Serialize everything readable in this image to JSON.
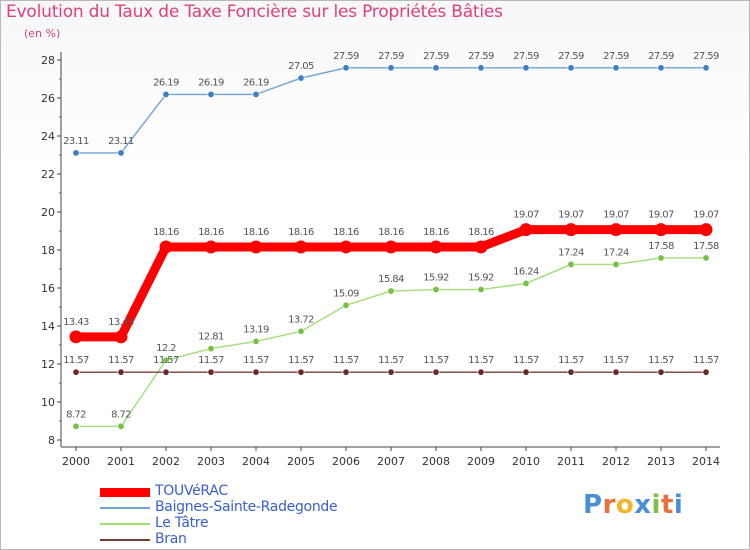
{
  "title": "Evolution du Taux de Taxe Foncière sur les Propriétés Bâties",
  "unit_label": "(en %)",
  "logo": {
    "letters": [
      "P",
      "r",
      "o",
      "x",
      "i",
      "t",
      "i"
    ],
    "colors": [
      "#4a8fd6",
      "#e8703a",
      "#f2b52c",
      "#4a8fd6",
      "#7cc242",
      "#e8703a",
      "#4a8fd6"
    ]
  },
  "chart_data": {
    "type": "line",
    "title": "Evolution du Taux de Taxe Foncière sur les Propriétés Bâties",
    "ylabel": "(en %)",
    "xlabel": "",
    "ylim": [
      8,
      28
    ],
    "yticks": [
      8,
      10,
      12,
      14,
      16,
      18,
      20,
      22,
      24,
      26,
      28
    ],
    "grid": false,
    "legend_position": "bottom-left",
    "x": [
      "2000",
      "2001",
      "2002",
      "2003",
      "2004",
      "2005",
      "2006",
      "2007",
      "2008",
      "2009",
      "2010",
      "2011",
      "2012",
      "2013",
      "2014"
    ],
    "series": [
      {
        "name": "TOUVéRAC",
        "color": "#ff0000",
        "emphasis": "thick",
        "values": [
          13.43,
          13.43,
          18.16,
          18.16,
          18.16,
          18.16,
          18.16,
          18.16,
          18.16,
          18.16,
          19.07,
          19.07,
          19.07,
          19.07,
          19.07
        ],
        "labels": [
          "13.43",
          "13.43",
          "18.16",
          "18.16",
          "18.16",
          "18.16",
          "18.16",
          "18.16",
          "18.16",
          "18.16",
          "19.07",
          "19.07",
          "19.07",
          "19.07",
          "19.07"
        ]
      },
      {
        "name": "Baignes-Sainte-Radegonde",
        "color": "#6fa2d8",
        "marker_color": "#3d7fc1",
        "emphasis": "thin",
        "values": [
          23.11,
          23.11,
          26.19,
          26.19,
          26.19,
          27.05,
          27.59,
          27.59,
          27.59,
          27.59,
          27.59,
          27.59,
          27.59,
          27.59,
          27.59
        ],
        "labels": [
          "23.11",
          "23.11",
          "26.19",
          "26.19",
          "26.19",
          "27.05",
          "27.59",
          "27.59",
          "27.59",
          "27.59",
          "27.59",
          "27.59",
          "27.59",
          "27.59",
          "27.59"
        ]
      },
      {
        "name": "Le Tâtre",
        "color": "#a3dc78",
        "marker_color": "#76c043",
        "emphasis": "thin",
        "values": [
          8.72,
          8.72,
          12.2,
          12.81,
          13.19,
          13.72,
          15.09,
          15.84,
          15.92,
          15.92,
          16.24,
          17.24,
          17.24,
          17.58,
          17.58
        ],
        "labels": [
          "8.72",
          "8.72",
          "12.2",
          "12.81",
          "13.19",
          "13.72",
          "15.09",
          "15.84",
          "15.92",
          "15.92",
          "16.24",
          "17.24",
          "17.24",
          "17.58",
          "17.58"
        ]
      },
      {
        "name": "Bran",
        "color": "#7a3b3b",
        "marker_color": "#6b2a2a",
        "emphasis": "thin",
        "values": [
          11.57,
          11.57,
          11.57,
          11.57,
          11.57,
          11.57,
          11.57,
          11.57,
          11.57,
          11.57,
          11.57,
          11.57,
          11.57,
          11.57,
          11.57
        ],
        "labels": [
          "11.57",
          "11.57",
          "11.57",
          "11.57",
          "11.57",
          "11.57",
          "11.57",
          "11.57",
          "11.57",
          "11.57",
          "11.57",
          "11.57",
          "11.57",
          "11.57",
          "11.57"
        ]
      }
    ]
  }
}
